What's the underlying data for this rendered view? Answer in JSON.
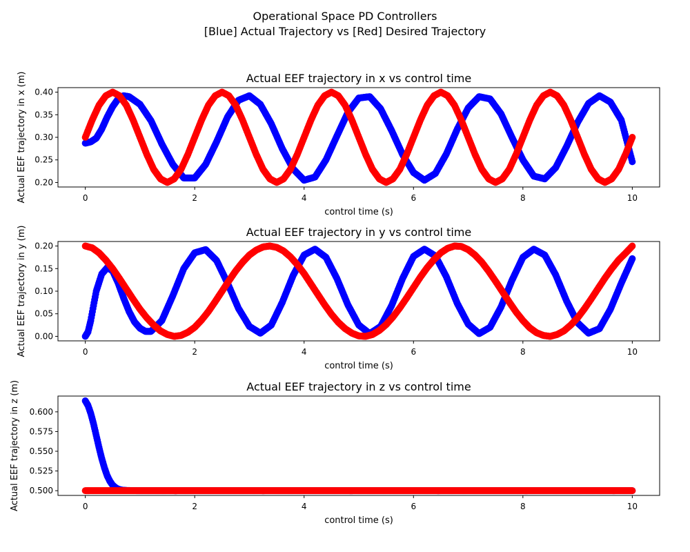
{
  "figure": {
    "suptitle_line1": "Operational Space PD Controllers",
    "suptitle_line2": "[Blue] Actual Trajectory vs [Red] Desired Trajectory"
  },
  "colors": {
    "actual": "#0000ff",
    "desired": "#ff0000",
    "axes": "#000000"
  },
  "chart_data": [
    {
      "type": "scatter",
      "title": "Actual EEF trajectory in x vs control time",
      "xlabel": "control time (s)",
      "ylabel": "Actual EEF trajectory in x (m)",
      "xlim": [
        -0.5,
        10.5
      ],
      "ylim": [
        0.19,
        0.41
      ],
      "xticks": [
        0,
        2,
        4,
        6,
        8,
        10
      ],
      "xtick_labels": [
        "0",
        "2",
        "4",
        "6",
        "8",
        "10"
      ],
      "yticks": [
        0.2,
        0.25,
        0.3,
        0.35,
        0.4
      ],
      "ytick_labels": [
        "0.20",
        "0.25",
        "0.30",
        "0.35",
        "0.40"
      ],
      "grid": false,
      "series": [
        {
          "color": "#0000ff",
          "x": [
            0,
            0.1,
            0.2,
            0.3,
            0.4,
            0.5,
            0.6,
            0.7,
            0.8,
            1.0,
            1.2,
            1.4,
            1.6,
            1.8,
            2.0,
            2.2,
            2.4,
            2.6,
            2.8,
            3.0,
            3.2,
            3.4,
            3.6,
            3.8,
            4.0,
            4.2,
            4.4,
            4.6,
            4.8,
            5.0,
            5.2,
            5.4,
            5.6,
            5.8,
            6.0,
            6.2,
            6.4,
            6.6,
            6.8,
            7.0,
            7.2,
            7.4,
            7.6,
            7.8,
            8.0,
            8.2,
            8.4,
            8.6,
            8.8,
            9.0,
            9.2,
            9.4,
            9.6,
            9.8,
            10.0
          ],
          "y": [
            0.287,
            0.29,
            0.298,
            0.318,
            0.345,
            0.368,
            0.385,
            0.392,
            0.39,
            0.373,
            0.337,
            0.285,
            0.24,
            0.21,
            0.21,
            0.24,
            0.29,
            0.345,
            0.382,
            0.392,
            0.373,
            0.33,
            0.275,
            0.23,
            0.205,
            0.212,
            0.25,
            0.303,
            0.355,
            0.387,
            0.39,
            0.363,
            0.315,
            0.262,
            0.222,
            0.205,
            0.22,
            0.263,
            0.318,
            0.365,
            0.39,
            0.385,
            0.352,
            0.3,
            0.25,
            0.214,
            0.208,
            0.233,
            0.28,
            0.333,
            0.375,
            0.392,
            0.378,
            0.338,
            0.246
          ]
        },
        {
          "color": "#ff0000",
          "x": [
            0,
            0.125,
            0.25,
            0.375,
            0.5,
            0.625,
            0.75,
            0.875,
            1.0,
            1.125,
            1.25,
            1.375,
            1.5,
            1.625,
            1.75,
            1.875,
            2.0,
            2.125,
            2.25,
            2.375,
            2.5,
            2.625,
            2.75,
            2.875,
            3.0,
            3.125,
            3.25,
            3.375,
            3.5,
            3.625,
            3.75,
            3.875,
            4.0,
            4.125,
            4.25,
            4.375,
            4.5,
            4.625,
            4.75,
            4.875,
            5.0,
            5.125,
            5.25,
            5.375,
            5.5,
            5.625,
            5.75,
            5.875,
            6.0,
            6.125,
            6.25,
            6.375,
            6.5,
            6.625,
            6.75,
            6.875,
            7.0,
            7.125,
            7.25,
            7.375,
            7.5,
            7.625,
            7.75,
            7.875,
            8.0,
            8.125,
            8.25,
            8.375,
            8.5,
            8.625,
            8.75,
            8.875,
            9.0,
            9.125,
            9.25,
            9.375,
            9.5,
            9.625,
            9.75,
            9.875,
            10.0
          ],
          "y": [
            0.3,
            0.338,
            0.371,
            0.392,
            0.4,
            0.392,
            0.371,
            0.338,
            0.3,
            0.262,
            0.229,
            0.208,
            0.2,
            0.208,
            0.229,
            0.262,
            0.3,
            0.338,
            0.371,
            0.392,
            0.4,
            0.392,
            0.371,
            0.338,
            0.3,
            0.262,
            0.229,
            0.208,
            0.2,
            0.208,
            0.229,
            0.262,
            0.3,
            0.338,
            0.371,
            0.392,
            0.4,
            0.392,
            0.371,
            0.338,
            0.3,
            0.262,
            0.229,
            0.208,
            0.2,
            0.208,
            0.229,
            0.262,
            0.3,
            0.338,
            0.371,
            0.392,
            0.4,
            0.392,
            0.371,
            0.338,
            0.3,
            0.262,
            0.229,
            0.208,
            0.2,
            0.208,
            0.229,
            0.262,
            0.3,
            0.338,
            0.371,
            0.392,
            0.4,
            0.392,
            0.371,
            0.338,
            0.3,
            0.262,
            0.229,
            0.208,
            0.2,
            0.208,
            0.229,
            0.262,
            0.3
          ]
        }
      ]
    },
    {
      "type": "scatter",
      "title": "Actual EEF trajectory in y vs control time",
      "xlabel": "control time (s)",
      "ylabel": "Actual EEF trajectory in y (m)",
      "xlim": [
        -0.5,
        10.5
      ],
      "ylim": [
        -0.01,
        0.21
      ],
      "xticks": [
        0,
        2,
        4,
        6,
        8,
        10
      ],
      "xtick_labels": [
        "0",
        "2",
        "4",
        "6",
        "8",
        "10"
      ],
      "yticks": [
        0.0,
        0.05,
        0.1,
        0.15,
        0.2
      ],
      "ytick_labels": [
        "0.00",
        "0.05",
        "0.10",
        "0.15",
        "0.20"
      ],
      "grid": false,
      "series": [
        {
          "color": "#0000ff",
          "x": [
            0,
            0.05,
            0.1,
            0.15,
            0.2,
            0.3,
            0.4,
            0.5,
            0.6,
            0.7,
            0.8,
            0.9,
            1.0,
            1.1,
            1.2,
            1.4,
            1.6,
            1.8,
            2.0,
            2.2,
            2.4,
            2.6,
            2.8,
            3.0,
            3.2,
            3.4,
            3.6,
            3.8,
            4.0,
            4.2,
            4.4,
            4.6,
            4.8,
            5.0,
            5.2,
            5.4,
            5.6,
            5.8,
            6.0,
            6.2,
            6.4,
            6.6,
            6.8,
            7.0,
            7.2,
            7.4,
            7.6,
            7.8,
            8.0,
            8.2,
            8.4,
            8.6,
            8.8,
            9.0,
            9.2,
            9.4,
            9.6,
            9.8,
            10.0
          ],
          "y": [
            0.0,
            0.01,
            0.035,
            0.068,
            0.1,
            0.138,
            0.152,
            0.145,
            0.118,
            0.085,
            0.055,
            0.032,
            0.018,
            0.011,
            0.011,
            0.035,
            0.09,
            0.15,
            0.185,
            0.192,
            0.168,
            0.118,
            0.062,
            0.022,
            0.007,
            0.025,
            0.075,
            0.135,
            0.18,
            0.193,
            0.175,
            0.128,
            0.07,
            0.025,
            0.006,
            0.022,
            0.068,
            0.128,
            0.177,
            0.193,
            0.178,
            0.132,
            0.073,
            0.027,
            0.006,
            0.02,
            0.065,
            0.124,
            0.175,
            0.193,
            0.18,
            0.136,
            0.078,
            0.03,
            0.007,
            0.017,
            0.06,
            0.118,
            0.172
          ]
        },
        {
          "color": "#ff0000",
          "x": [
            0,
            0.125,
            0.25,
            0.375,
            0.5,
            0.625,
            0.75,
            0.875,
            1.0,
            1.125,
            1.25,
            1.375,
            1.5,
            1.625,
            1.75,
            1.875,
            2.0,
            2.125,
            2.25,
            2.375,
            2.5,
            2.625,
            2.75,
            2.875,
            3.0,
            3.125,
            3.25,
            3.375,
            3.5,
            3.625,
            3.75,
            3.875,
            4.0,
            4.125,
            4.25,
            4.375,
            4.5,
            4.625,
            4.75,
            4.875,
            5.0,
            5.125,
            5.25,
            5.375,
            5.5,
            5.625,
            5.75,
            5.875,
            6.0,
            6.125,
            6.25,
            6.375,
            6.5,
            6.625,
            6.75,
            6.875,
            7.0,
            7.125,
            7.25,
            7.375,
            7.5,
            7.625,
            7.75,
            7.875,
            8.0,
            8.125,
            8.25,
            8.375,
            8.5,
            8.625,
            8.75,
            8.875,
            9.0,
            9.125,
            9.25,
            9.375,
            9.5,
            9.625,
            9.75,
            9.875,
            10.0
          ],
          "y": [
            0.2,
            0.196,
            0.185,
            0.169,
            0.15,
            0.128,
            0.105,
            0.082,
            0.06,
            0.041,
            0.025,
            0.012,
            0.004,
            0.0,
            0.002,
            0.009,
            0.02,
            0.036,
            0.055,
            0.077,
            0.1,
            0.123,
            0.145,
            0.164,
            0.18,
            0.191,
            0.198,
            0.2,
            0.197,
            0.189,
            0.176,
            0.159,
            0.139,
            0.116,
            0.093,
            0.07,
            0.049,
            0.031,
            0.017,
            0.007,
            0.001,
            0.0,
            0.004,
            0.013,
            0.026,
            0.043,
            0.063,
            0.085,
            0.108,
            0.131,
            0.152,
            0.17,
            0.185,
            0.195,
            0.2,
            0.199,
            0.192,
            0.18,
            0.164,
            0.144,
            0.122,
            0.099,
            0.076,
            0.054,
            0.035,
            0.019,
            0.008,
            0.002,
            0.0,
            0.004,
            0.012,
            0.025,
            0.041,
            0.061,
            0.083,
            0.106,
            0.129,
            0.15,
            0.169,
            0.184,
            0.2
          ]
        }
      ]
    },
    {
      "type": "scatter",
      "title": "Actual EEF trajectory in z vs control time",
      "xlabel": "control time (s)",
      "ylabel": "Actual EEF trajectory in z (m)",
      "xlim": [
        -0.5,
        10.5
      ],
      "ylim": [
        0.494,
        0.62
      ],
      "xticks": [
        0,
        2,
        4,
        6,
        8,
        10
      ],
      "xtick_labels": [
        "0",
        "2",
        "4",
        "6",
        "8",
        "10"
      ],
      "yticks": [
        0.5,
        0.525,
        0.55,
        0.575,
        0.6
      ],
      "ytick_labels": [
        "0.500",
        "0.525",
        "0.550",
        "0.575",
        "0.600"
      ],
      "grid": false,
      "series": [
        {
          "color": "#0000ff",
          "x": [
            0,
            0.05,
            0.1,
            0.15,
            0.2,
            0.25,
            0.3,
            0.35,
            0.4,
            0.45,
            0.5,
            0.55,
            0.6,
            0.65,
            0.7,
            0.75,
            0.8,
            0.9,
            1.0,
            1.2,
            1.5,
            2.0,
            3.0,
            4.0,
            5.0,
            6.0,
            7.0,
            8.0,
            9.0,
            10.0
          ],
          "y": [
            0.614,
            0.608,
            0.598,
            0.585,
            0.57,
            0.555,
            0.541,
            0.529,
            0.519,
            0.512,
            0.507,
            0.504,
            0.502,
            0.501,
            0.5005,
            0.5003,
            0.5002,
            0.5001,
            0.5,
            0.5,
            0.5,
            0.5,
            0.5,
            0.5,
            0.5,
            0.5,
            0.5,
            0.5,
            0.5,
            0.5
          ]
        },
        {
          "color": "#ff0000",
          "x": [
            0,
            10
          ],
          "y": [
            0.5,
            0.5
          ]
        }
      ]
    }
  ]
}
